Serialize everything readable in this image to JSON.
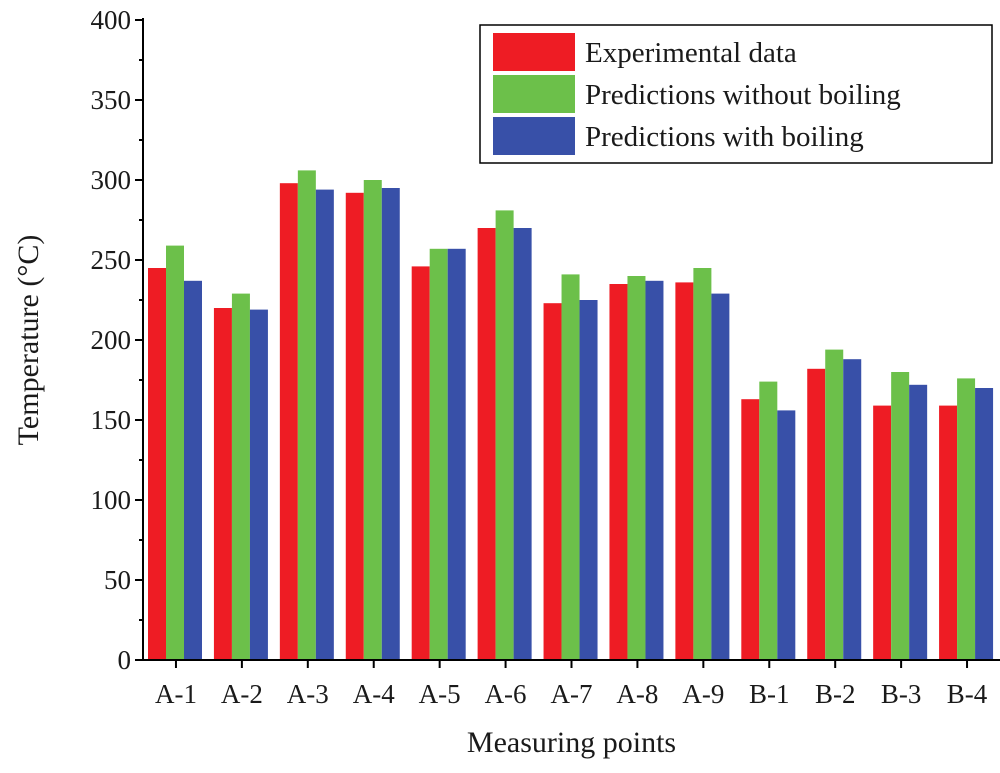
{
  "chart_data": {
    "type": "bar",
    "title": "",
    "xlabel": "Measuring points",
    "ylabel": "Temperature (°C)",
    "ylim": [
      0,
      400
    ],
    "yticks": [
      0,
      50,
      100,
      150,
      200,
      250,
      300,
      350,
      400
    ],
    "grid": false,
    "legend_position": "top-right",
    "categories": [
      "A-1",
      "A-2",
      "A-3",
      "A-4",
      "A-5",
      "A-6",
      "A-7",
      "A-8",
      "A-9",
      "B-1",
      "B-2",
      "B-3",
      "B-4"
    ],
    "series": [
      {
        "name": "Experimental data",
        "color": "#ee1c24",
        "values": [
          245,
          220,
          298,
          292,
          246,
          270,
          223,
          235,
          236,
          163,
          182,
          159,
          159
        ]
      },
      {
        "name": "Predictions without boiling",
        "color": "#6cc04a",
        "values": [
          259,
          229,
          306,
          300,
          257,
          281,
          241,
          240,
          245,
          174,
          194,
          180,
          176
        ]
      },
      {
        "name": "Predictions with boiling",
        "color": "#3850a8",
        "values": [
          237,
          219,
          294,
          295,
          257,
          270,
          225,
          237,
          229,
          156,
          188,
          172,
          170
        ]
      }
    ]
  }
}
